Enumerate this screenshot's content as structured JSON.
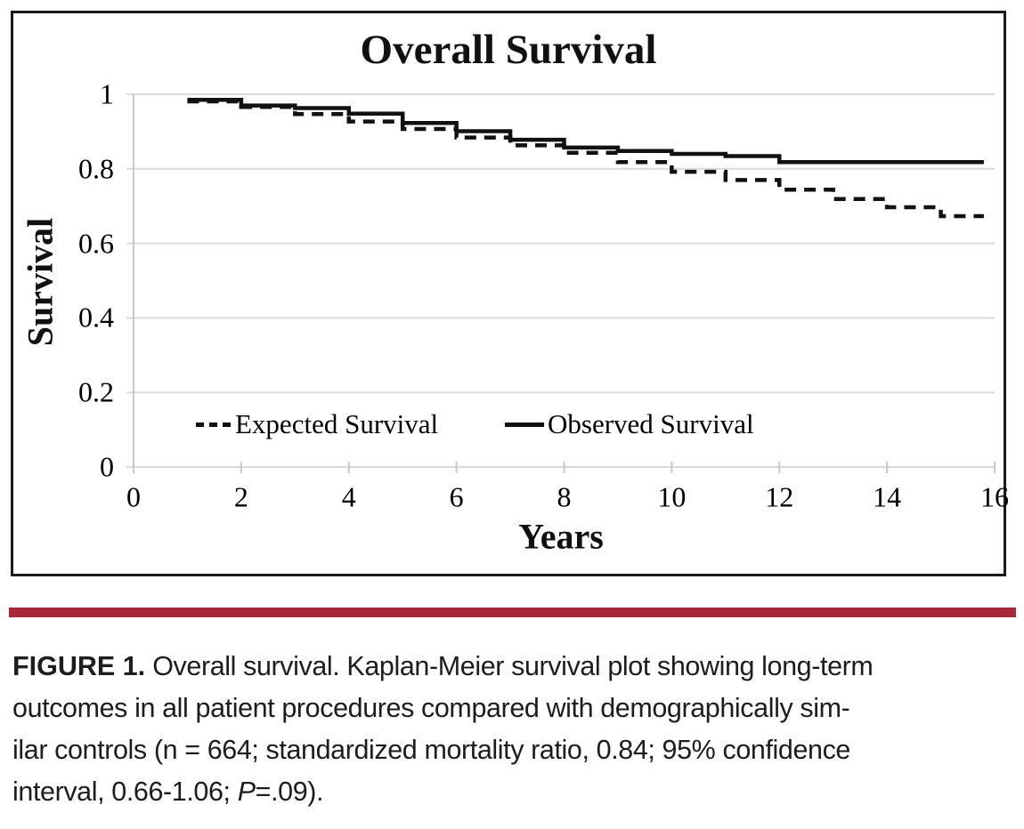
{
  "figure": {
    "title": "Overall Survival",
    "x_axis": {
      "label": "Years"
    },
    "y_axis": {
      "label": "Survival"
    },
    "legend": [
      {
        "label": "Expected Survival",
        "style": "dashed"
      },
      {
        "label": "Observed Survival",
        "style": "solid"
      }
    ]
  },
  "chart_data": {
    "type": "line",
    "subtype": "kaplan-meier-step",
    "title": "Overall Survival",
    "xlabel": "Years",
    "ylabel": "Survival",
    "xlim": [
      0,
      16
    ],
    "ylim": [
      0,
      1
    ],
    "x_ticks": [
      0,
      2,
      4,
      6,
      8,
      10,
      12,
      14,
      16
    ],
    "y_ticks": [
      1,
      0.8,
      0.6,
      0.4,
      0.2,
      0
    ],
    "y_tick_labels": [
      "1",
      "0.8",
      "0.6",
      "0.4",
      "0.2",
      "0"
    ],
    "grid": "horizontal",
    "legend_position": "inside-bottom-left",
    "series": [
      {
        "name": "Expected Survival",
        "line": "dashed",
        "color": "#111111",
        "points": [
          [
            1,
            0.981
          ],
          [
            2,
            0.966
          ],
          [
            3,
            0.947
          ],
          [
            4,
            0.927
          ],
          [
            5,
            0.907
          ],
          [
            6,
            0.884
          ],
          [
            7,
            0.863
          ],
          [
            8,
            0.843
          ],
          [
            9,
            0.818
          ],
          [
            10,
            0.792
          ],
          [
            11,
            0.77
          ],
          [
            12,
            0.744
          ],
          [
            13,
            0.719
          ],
          [
            14,
            0.697
          ],
          [
            15,
            0.673
          ],
          [
            15.8,
            0.673
          ]
        ]
      },
      {
        "name": "Observed Survival",
        "line": "solid",
        "color": "#111111",
        "points": [
          [
            1,
            0.985
          ],
          [
            2,
            0.97
          ],
          [
            3,
            0.963
          ],
          [
            4,
            0.948
          ],
          [
            5,
            0.923
          ],
          [
            6,
            0.901
          ],
          [
            7,
            0.878
          ],
          [
            8,
            0.857
          ],
          [
            9,
            0.848
          ],
          [
            10,
            0.84
          ],
          [
            11,
            0.834
          ],
          [
            12,
            0.818
          ],
          [
            15.8,
            0.818
          ]
        ]
      }
    ]
  },
  "caption": {
    "label": "FIGURE 1.",
    "line1": " Overall survival. Kaplan-Meier survival plot showing long-term",
    "line2": "outcomes in all patient procedures compared with demographically sim-",
    "line3": "ilar controls (n = 664; standardized mortality ratio, 0.84; 95% confidence",
    "line4_pre": "interval, 0.66-1.06; ",
    "line4_italic": "P",
    "line4_post": "=.09)."
  },
  "colors": {
    "rule": "#A72837",
    "curve": "#111111",
    "grid": "#d9d9d9",
    "axis": "#c9c9c9",
    "text": "#000000"
  }
}
